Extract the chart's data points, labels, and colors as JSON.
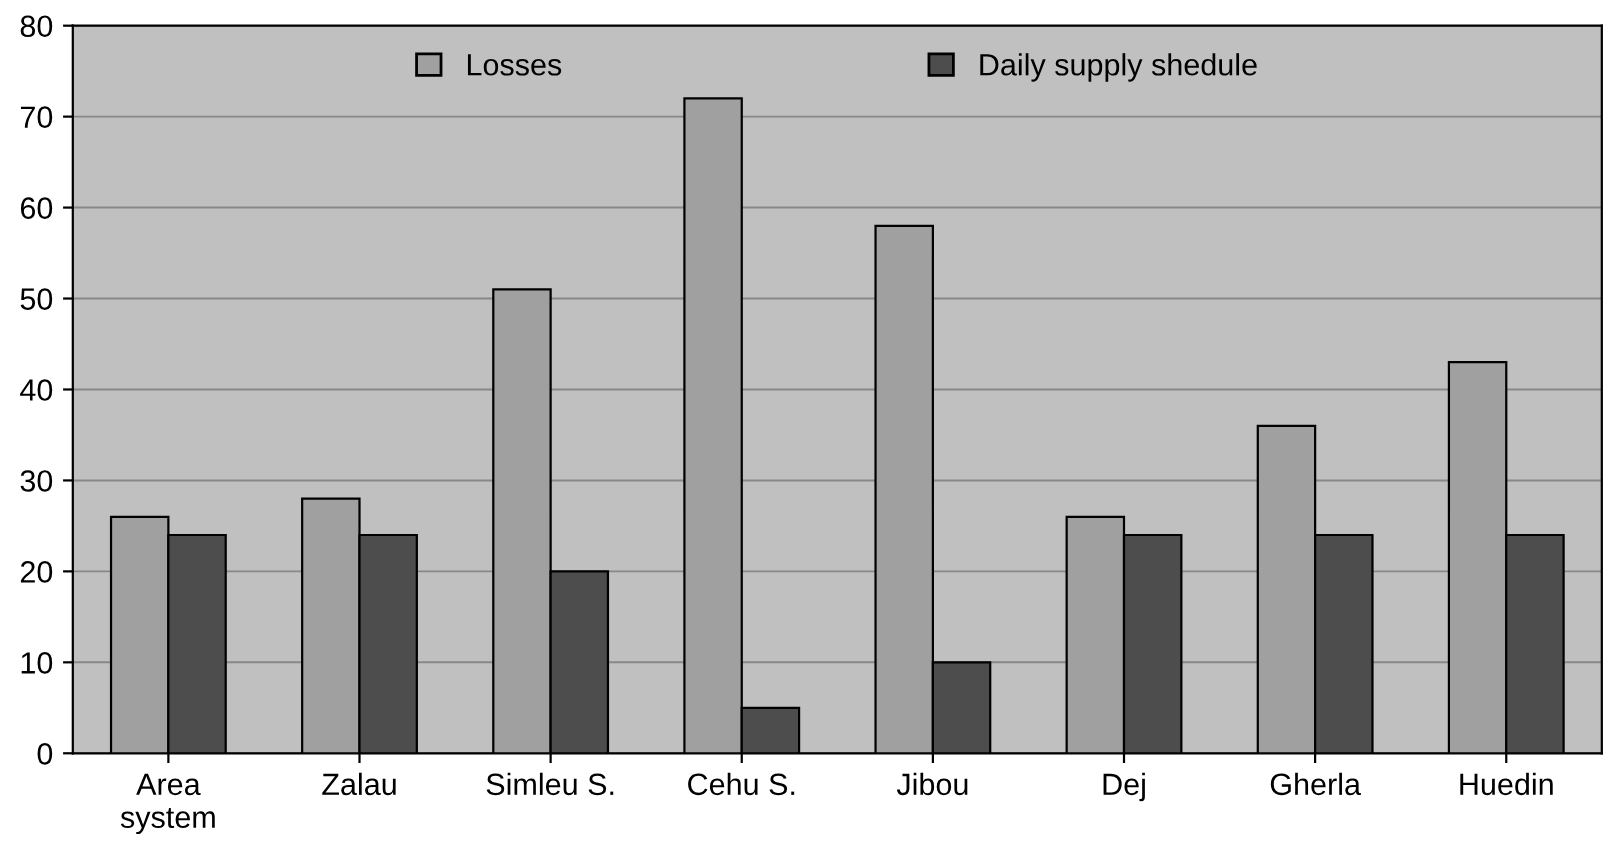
{
  "chart_data": {
    "type": "bar",
    "categories": [
      "Area\nsystem",
      "Zalau",
      "Simleu S.",
      "Cehu S.",
      "Jibou",
      "Dej",
      "Gherla",
      "Huedin"
    ],
    "series": [
      {
        "name": "Losses",
        "color": "#a0a0a0",
        "values": [
          26,
          28,
          51,
          72,
          58,
          26,
          36,
          43
        ]
      },
      {
        "name": "Daily supply shedule",
        "color": "#4d4d4d",
        "values": [
          24,
          24,
          20,
          5,
          10,
          24,
          24,
          24
        ]
      }
    ],
    "ylim": [
      0,
      80
    ],
    "yticks": [
      0,
      10,
      20,
      30,
      40,
      50,
      60,
      70,
      80
    ],
    "grid": "y",
    "legend": "top"
  }
}
